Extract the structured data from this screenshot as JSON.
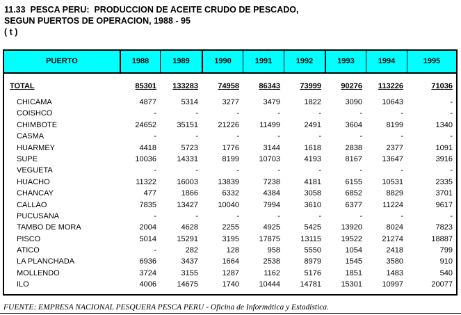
{
  "page": {
    "title_line1": "11.33  PESCA PERU:  PRODUCCION DE ACEITE CRUDO DE PESCADO,",
    "title_line2": "SEGUN PUERTOS DE OPERACION, 1988 - 95",
    "unit": "( t )"
  },
  "colors": {
    "header_bg": "#00ffff",
    "border": "#000000",
    "text": "#000000"
  },
  "table": {
    "header": [
      "PUERTO",
      "1988",
      "1989",
      "1990",
      "1991",
      "1992",
      "1993",
      "1994",
      "1995"
    ],
    "total_row": {
      "label": "TOTAL",
      "values": [
        "85301",
        "133283",
        "74958",
        "86343",
        "73999",
        "90276",
        "113226",
        "71036"
      ]
    },
    "rows": [
      {
        "label": "CHICAMA",
        "values": [
          "4877",
          "5314",
          "3277",
          "3479",
          "1822",
          "3090",
          "10643",
          "-"
        ]
      },
      {
        "label": "COISHCO",
        "values": [
          "-",
          "-",
          "-",
          "-",
          "-",
          "-",
          "-",
          "-"
        ]
      },
      {
        "label": "CHIMBOTE",
        "values": [
          "24652",
          "35151",
          "21226",
          "11499",
          "2491",
          "3604",
          "8199",
          "1340"
        ]
      },
      {
        "label": "CASMA",
        "values": [
          "-",
          "-",
          "-",
          "-",
          "-",
          "-",
          "-",
          "-"
        ]
      },
      {
        "label": "HUARMEY",
        "values": [
          "4418",
          "5723",
          "1776",
          "3144",
          "1618",
          "2838",
          "2377",
          "1091"
        ]
      },
      {
        "label": "SUPE",
        "values": [
          "10036",
          "14331",
          "8199",
          "10703",
          "4193",
          "8167",
          "13647",
          "3916"
        ]
      },
      {
        "label": "VEGUETA",
        "values": [
          "-",
          "-",
          "-",
          "-",
          "-",
          "-",
          "-",
          "-"
        ]
      },
      {
        "label": "HUACHO",
        "values": [
          "11322",
          "16003",
          "13839",
          "7238",
          "4181",
          "6155",
          "10531",
          "2335"
        ]
      },
      {
        "label": "CHANCAY",
        "values": [
          "477",
          "1866",
          "6332",
          "4384",
          "3058",
          "6852",
          "8829",
          "3701"
        ]
      },
      {
        "label": "CALLAO",
        "values": [
          "7835",
          "13427",
          "10040",
          "7994",
          "3610",
          "6377",
          "11224",
          "9617"
        ]
      },
      {
        "label": "PUCUSANA",
        "values": [
          "-",
          "-",
          "-",
          "-",
          "-",
          "-",
          "-",
          "-"
        ]
      },
      {
        "label": "TAMBO DE MORA",
        "values": [
          "2004",
          "4628",
          "2255",
          "4925",
          "5425",
          "13920",
          "8024",
          "7823"
        ]
      },
      {
        "label": "PISCO",
        "values": [
          "5014",
          "15291",
          "3195",
          "17875",
          "13115",
          "19522",
          "21274",
          "18887"
        ]
      },
      {
        "label": "ATICO",
        "values": [
          "-",
          "282",
          "128",
          "958",
          "5550",
          "1054",
          "2418",
          "799"
        ]
      },
      {
        "label": "LA PLANCHADA",
        "values": [
          "6936",
          "3437",
          "1664",
          "2538",
          "8979",
          "1545",
          "3580",
          "910"
        ]
      },
      {
        "label": "MOLLENDO",
        "values": [
          "3724",
          "3155",
          "1287",
          "1162",
          "5176",
          "1851",
          "1483",
          "540"
        ]
      },
      {
        "label": "ILO",
        "values": [
          "4006",
          "14675",
          "1740",
          "10444",
          "14781",
          "15301",
          "10997",
          "20077"
        ]
      }
    ]
  },
  "footer": {
    "source": "FUENTE: EMPRESA NACIONAL PESQUERA PESCA PERU - Oficina de Informática y Estadística."
  }
}
